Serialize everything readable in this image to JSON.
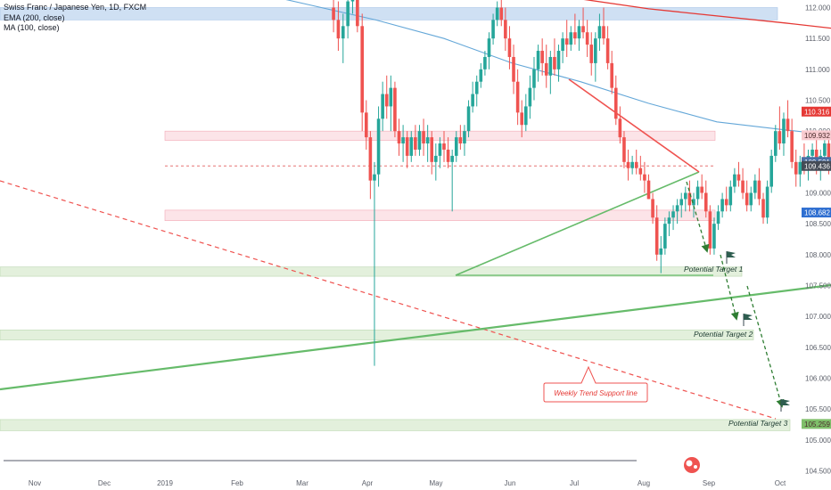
{
  "chart_data": {
    "type": "candlestick",
    "title": "Swiss Franc / Japanese Yen, 1D, FXCM",
    "indicators": [
      "EMA (200, close)",
      "MA (100, close)"
    ],
    "ylim": [
      104.4,
      112.2
    ],
    "y_ticks": [
      "112.000",
      "111.500",
      "111.000",
      "110.500",
      "110.000",
      "109.500",
      "109.000",
      "108.500",
      "108.000",
      "107.500",
      "107.000",
      "106.500",
      "106.000",
      "105.500",
      "105.000",
      "104.500"
    ],
    "x_ticks": [
      "Nov",
      "Dec",
      "2019",
      "Feb",
      "Mar",
      "Apr",
      "May",
      "Jun",
      "Jul",
      "Aug",
      "Sep",
      "Oct"
    ],
    "price_labels": [
      {
        "value": 110.316,
        "text": "110.316",
        "color": "#e53935"
      },
      {
        "value": 109.932,
        "text": "109.932",
        "color": "#f8cbd0"
      },
      {
        "value": 109.501,
        "text": "109.501",
        "color": "#4a6fa5"
      },
      {
        "value": 109.436,
        "text": "109.436",
        "color": "#444b56"
      },
      {
        "value": 108.682,
        "text": "108.682",
        "color": "#2f6fd1"
      },
      {
        "value": 105.259,
        "text": "105.259",
        "color": "#7fbf6a"
      }
    ],
    "zones": [
      {
        "name": "resistance-zone",
        "y1": 111.8,
        "y2": 112.0,
        "color": "#cfe0f3"
      },
      {
        "name": "resistance-zone-2",
        "y1": 109.85,
        "y2": 110.0,
        "color": "#fce4e8"
      },
      {
        "name": "support-zone",
        "y1": 108.55,
        "y2": 108.72,
        "color": "#fce4e8"
      },
      {
        "name": "target-zone-1",
        "y1": 107.65,
        "y2": 107.8,
        "color": "#e3f0dc"
      },
      {
        "name": "target-zone-2",
        "y1": 106.62,
        "y2": 106.78,
        "color": "#e3f0dc"
      },
      {
        "name": "target-zone-3",
        "y1": 105.15,
        "y2": 105.33,
        "color": "#e3f0dc"
      }
    ],
    "annotations": {
      "target_1": "Potential Target 1",
      "target_2": "Potential Target 2",
      "target_3": "Potential Target 3",
      "callout": "Weekly Trend Support line"
    },
    "ema200": [
      [
        7,
        112.3
      ],
      [
        9,
        111.98
      ],
      [
        11,
        111.75
      ],
      [
        13,
        111.5
      ],
      [
        15,
        111.2
      ],
      [
        17,
        110.95
      ],
      [
        19,
        110.7
      ],
      [
        21,
        110.5
      ],
      [
        23,
        110.35
      ],
      [
        25,
        110.3
      ]
    ],
    "ma100": [
      [
        3,
        112.3
      ],
      [
        4,
        112.05
      ],
      [
        5,
        111.8
      ],
      [
        6,
        111.5
      ],
      [
        7,
        111.1
      ],
      [
        8,
        110.8
      ],
      [
        9,
        110.45
      ],
      [
        10,
        110.15
      ],
      [
        11,
        110.02
      ],
      [
        12,
        109.9
      ],
      [
        13,
        109.85
      ],
      [
        14,
        109.8
      ],
      [
        15,
        109.75
      ],
      [
        16,
        109.72
      ],
      [
        17,
        109.67
      ],
      [
        18,
        109.62
      ],
      [
        18.4,
        109.62
      ],
      [
        18.6,
        109.75
      ]
    ],
    "candles": [
      {
        "t": 4.38,
        "o": 112.0,
        "h": 112.2,
        "l": 111.6,
        "c": 111.8
      },
      {
        "t": 4.45,
        "o": 111.8,
        "h": 112.1,
        "l": 111.3,
        "c": 111.5
      },
      {
        "t": 4.52,
        "o": 111.5,
        "h": 111.9,
        "l": 111.1,
        "c": 111.7
      },
      {
        "t": 4.59,
        "o": 111.7,
        "h": 112.2,
        "l": 111.5,
        "c": 112.1
      },
      {
        "t": 4.66,
        "o": 112.1,
        "h": 112.3,
        "l": 111.9,
        "c": 112.2
      },
      {
        "t": 4.73,
        "o": 112.2,
        "h": 112.3,
        "l": 111.6,
        "c": 111.7
      },
      {
        "t": 4.8,
        "o": 111.7,
        "h": 111.9,
        "l": 110.0,
        "c": 110.3
      },
      {
        "t": 4.86,
        "o": 110.3,
        "h": 110.5,
        "l": 109.7,
        "c": 109.9
      },
      {
        "t": 4.92,
        "o": 109.9,
        "h": 110.0,
        "l": 108.9,
        "c": 109.2
      },
      {
        "t": 4.98,
        "o": 109.2,
        "h": 109.5,
        "l": 106.2,
        "c": 109.3
      },
      {
        "t": 5.04,
        "o": 109.3,
        "h": 110.4,
        "l": 109.1,
        "c": 110.2
      },
      {
        "t": 5.1,
        "o": 110.2,
        "h": 110.8,
        "l": 110.0,
        "c": 110.6
      },
      {
        "t": 5.16,
        "o": 110.6,
        "h": 110.9,
        "l": 110.2,
        "c": 110.4
      },
      {
        "t": 5.22,
        "o": 110.4,
        "h": 110.9,
        "l": 110.0,
        "c": 110.7
      },
      {
        "t": 5.28,
        "o": 110.7,
        "h": 110.8,
        "l": 109.9,
        "c": 110.0
      },
      {
        "t": 5.34,
        "o": 110.0,
        "h": 110.2,
        "l": 109.6,
        "c": 109.8
      },
      {
        "t": 5.4,
        "o": 109.8,
        "h": 110.1,
        "l": 109.5,
        "c": 109.9
      },
      {
        "t": 5.46,
        "o": 109.9,
        "h": 110.0,
        "l": 109.4,
        "c": 109.6
      },
      {
        "t": 5.52,
        "o": 109.6,
        "h": 110.0,
        "l": 109.5,
        "c": 109.9
      },
      {
        "t": 5.58,
        "o": 109.9,
        "h": 110.1,
        "l": 109.6,
        "c": 109.7
      },
      {
        "t": 5.64,
        "o": 109.7,
        "h": 110.1,
        "l": 109.6,
        "c": 110.0
      },
      {
        "t": 5.7,
        "o": 110.0,
        "h": 110.2,
        "l": 109.6,
        "c": 109.8
      },
      {
        "t": 5.76,
        "o": 109.8,
        "h": 110.1,
        "l": 109.5,
        "c": 109.9
      },
      {
        "t": 5.82,
        "o": 109.9,
        "h": 110.0,
        "l": 109.3,
        "c": 109.5
      },
      {
        "t": 5.88,
        "o": 109.5,
        "h": 109.8,
        "l": 109.2,
        "c": 109.6
      },
      {
        "t": 5.94,
        "o": 109.6,
        "h": 109.9,
        "l": 109.4,
        "c": 109.8
      },
      {
        "t": 6.0,
        "o": 109.8,
        "h": 110.0,
        "l": 109.5,
        "c": 109.7
      },
      {
        "t": 6.06,
        "o": 109.7,
        "h": 109.9,
        "l": 109.4,
        "c": 109.5
      },
      {
        "t": 6.12,
        "o": 109.5,
        "h": 109.7,
        "l": 108.7,
        "c": 109.6
      },
      {
        "t": 6.18,
        "o": 109.6,
        "h": 110.0,
        "l": 109.5,
        "c": 109.9
      },
      {
        "t": 6.24,
        "o": 109.9,
        "h": 110.1,
        "l": 109.7,
        "c": 109.8
      },
      {
        "t": 6.3,
        "o": 109.8,
        "h": 110.1,
        "l": 109.6,
        "c": 110.0
      },
      {
        "t": 6.36,
        "o": 110.0,
        "h": 110.5,
        "l": 109.9,
        "c": 110.4
      },
      {
        "t": 6.42,
        "o": 110.4,
        "h": 110.8,
        "l": 110.3,
        "c": 110.6
      },
      {
        "t": 6.48,
        "o": 110.6,
        "h": 110.9,
        "l": 110.4,
        "c": 110.8
      },
      {
        "t": 6.54,
        "o": 110.8,
        "h": 111.1,
        "l": 110.7,
        "c": 111.0
      },
      {
        "t": 6.6,
        "o": 111.0,
        "h": 111.3,
        "l": 110.9,
        "c": 111.2
      },
      {
        "t": 6.66,
        "o": 111.2,
        "h": 111.6,
        "l": 111.0,
        "c": 111.5
      },
      {
        "t": 6.72,
        "o": 111.5,
        "h": 111.9,
        "l": 111.4,
        "c": 111.8
      },
      {
        "t": 6.78,
        "o": 111.8,
        "h": 112.1,
        "l": 111.7,
        "c": 112.0
      },
      {
        "t": 6.84,
        "o": 112.0,
        "h": 112.2,
        "l": 111.7,
        "c": 111.8
      },
      {
        "t": 6.9,
        "o": 111.8,
        "h": 112.0,
        "l": 111.3,
        "c": 111.5
      },
      {
        "t": 6.96,
        "o": 111.5,
        "h": 111.7,
        "l": 111.0,
        "c": 111.2
      },
      {
        "t": 7.02,
        "o": 111.2,
        "h": 111.4,
        "l": 110.6,
        "c": 110.8
      },
      {
        "t": 7.08,
        "o": 110.8,
        "h": 111.0,
        "l": 110.1,
        "c": 110.3
      },
      {
        "t": 7.14,
        "o": 110.3,
        "h": 110.5,
        "l": 109.9,
        "c": 110.1
      },
      {
        "t": 7.2,
        "o": 110.1,
        "h": 110.6,
        "l": 110.0,
        "c": 110.4
      },
      {
        "t": 7.26,
        "o": 110.4,
        "h": 110.9,
        "l": 110.2,
        "c": 110.7
      },
      {
        "t": 7.32,
        "o": 110.7,
        "h": 111.2,
        "l": 110.5,
        "c": 111.0
      },
      {
        "t": 7.38,
        "o": 111.0,
        "h": 111.4,
        "l": 110.8,
        "c": 111.3
      },
      {
        "t": 7.44,
        "o": 111.3,
        "h": 111.5,
        "l": 110.9,
        "c": 111.1
      },
      {
        "t": 7.5,
        "o": 111.1,
        "h": 111.4,
        "l": 110.7,
        "c": 110.9
      },
      {
        "t": 7.56,
        "o": 110.9,
        "h": 111.3,
        "l": 110.6,
        "c": 111.2
      },
      {
        "t": 7.62,
        "o": 111.2,
        "h": 111.5,
        "l": 110.9,
        "c": 111.0
      },
      {
        "t": 7.68,
        "o": 111.0,
        "h": 111.4,
        "l": 110.8,
        "c": 111.3
      },
      {
        "t": 7.74,
        "o": 111.3,
        "h": 111.6,
        "l": 111.1,
        "c": 111.5
      },
      {
        "t": 7.8,
        "o": 111.5,
        "h": 111.8,
        "l": 111.2,
        "c": 111.4
      },
      {
        "t": 7.86,
        "o": 111.4,
        "h": 111.7,
        "l": 111.3,
        "c": 111.6
      },
      {
        "t": 7.92,
        "o": 111.6,
        "h": 111.9,
        "l": 111.4,
        "c": 111.5
      },
      {
        "t": 7.98,
        "o": 111.5,
        "h": 111.8,
        "l": 111.3,
        "c": 111.7
      },
      {
        "t": 8.04,
        "o": 111.7,
        "h": 112.0,
        "l": 111.5,
        "c": 111.6
      },
      {
        "t": 8.1,
        "o": 111.6,
        "h": 111.8,
        "l": 111.2,
        "c": 111.4
      },
      {
        "t": 8.16,
        "o": 111.4,
        "h": 111.6,
        "l": 110.9,
        "c": 111.1
      },
      {
        "t": 8.22,
        "o": 111.1,
        "h": 111.6,
        "l": 110.8,
        "c": 111.5
      },
      {
        "t": 8.28,
        "o": 111.5,
        "h": 111.9,
        "l": 111.3,
        "c": 111.7
      },
      {
        "t": 8.34,
        "o": 111.7,
        "h": 112.0,
        "l": 111.4,
        "c": 111.5
      },
      {
        "t": 8.4,
        "o": 111.5,
        "h": 111.7,
        "l": 111.0,
        "c": 111.1
      },
      {
        "t": 8.46,
        "o": 111.1,
        "h": 111.3,
        "l": 110.6,
        "c": 110.7
      },
      {
        "t": 8.52,
        "o": 110.7,
        "h": 110.9,
        "l": 110.1,
        "c": 110.2
      },
      {
        "t": 8.58,
        "o": 110.2,
        "h": 110.4,
        "l": 109.8,
        "c": 109.9
      },
      {
        "t": 8.64,
        "o": 109.9,
        "h": 110.0,
        "l": 109.4,
        "c": 109.5
      },
      {
        "t": 8.7,
        "o": 109.5,
        "h": 109.7,
        "l": 109.2,
        "c": 109.4
      },
      {
        "t": 8.76,
        "o": 109.4,
        "h": 109.6,
        "l": 109.3,
        "c": 109.5
      },
      {
        "t": 8.82,
        "o": 109.5,
        "h": 109.7,
        "l": 109.3,
        "c": 109.4
      },
      {
        "t": 8.88,
        "o": 109.4,
        "h": 109.6,
        "l": 109.2,
        "c": 109.3
      },
      {
        "t": 8.94,
        "o": 109.3,
        "h": 109.5,
        "l": 109.0,
        "c": 109.2
      },
      {
        "t": 9.0,
        "o": 109.2,
        "h": 109.3,
        "l": 108.9,
        "c": 108.9
      },
      {
        "t": 9.06,
        "o": 108.9,
        "h": 109.0,
        "l": 108.5,
        "c": 108.6
      },
      {
        "t": 9.12,
        "o": 108.6,
        "h": 108.8,
        "l": 107.9,
        "c": 108.0
      },
      {
        "t": 9.18,
        "o": 108.0,
        "h": 108.3,
        "l": 107.7,
        "c": 108.1
      },
      {
        "t": 9.24,
        "o": 108.1,
        "h": 108.6,
        "l": 108.0,
        "c": 108.5
      },
      {
        "t": 9.3,
        "o": 108.5,
        "h": 108.7,
        "l": 108.3,
        "c": 108.6
      },
      {
        "t": 9.36,
        "o": 108.6,
        "h": 108.8,
        "l": 108.4,
        "c": 108.7
      },
      {
        "t": 9.42,
        "o": 108.7,
        "h": 108.9,
        "l": 108.5,
        "c": 108.8
      },
      {
        "t": 9.48,
        "o": 108.8,
        "h": 109.0,
        "l": 108.6,
        "c": 108.9
      },
      {
        "t": 9.54,
        "o": 108.9,
        "h": 109.1,
        "l": 108.7,
        "c": 109.0
      },
      {
        "t": 9.6,
        "o": 109.0,
        "h": 109.2,
        "l": 108.7,
        "c": 108.8
      },
      {
        "t": 9.66,
        "o": 108.8,
        "h": 109.0,
        "l": 108.6,
        "c": 108.9
      },
      {
        "t": 9.72,
        "o": 108.9,
        "h": 109.2,
        "l": 108.8,
        "c": 109.1
      },
      {
        "t": 9.78,
        "o": 109.1,
        "h": 109.3,
        "l": 108.9,
        "c": 109.0
      },
      {
        "t": 9.84,
        "o": 109.0,
        "h": 109.2,
        "l": 108.6,
        "c": 108.7
      },
      {
        "t": 9.9,
        "o": 108.7,
        "h": 108.8,
        "l": 108.0,
        "c": 108.1
      },
      {
        "t": 9.96,
        "o": 108.1,
        "h": 108.6,
        "l": 108.0,
        "c": 108.5
      },
      {
        "t": 10.02,
        "o": 108.5,
        "h": 108.8,
        "l": 108.4,
        "c": 108.7
      },
      {
        "t": 10.08,
        "o": 108.7,
        "h": 109.0,
        "l": 108.6,
        "c": 108.9
      },
      {
        "t": 10.14,
        "o": 108.9,
        "h": 109.1,
        "l": 108.7,
        "c": 108.8
      },
      {
        "t": 10.2,
        "o": 108.8,
        "h": 109.2,
        "l": 108.7,
        "c": 109.1
      },
      {
        "t": 10.26,
        "o": 109.1,
        "h": 109.4,
        "l": 109.0,
        "c": 109.3
      },
      {
        "t": 10.32,
        "o": 109.3,
        "h": 109.5,
        "l": 109.1,
        "c": 109.2
      },
      {
        "t": 10.38,
        "o": 109.2,
        "h": 109.4,
        "l": 108.9,
        "c": 109.0
      },
      {
        "t": 10.44,
        "o": 109.0,
        "h": 109.2,
        "l": 108.7,
        "c": 108.8
      },
      {
        "t": 10.5,
        "o": 108.8,
        "h": 109.1,
        "l": 108.7,
        "c": 109.0
      },
      {
        "t": 10.56,
        "o": 109.0,
        "h": 109.3,
        "l": 108.9,
        "c": 109.2
      },
      {
        "t": 10.62,
        "o": 109.2,
        "h": 109.4,
        "l": 108.8,
        "c": 108.9
      },
      {
        "t": 10.68,
        "o": 108.9,
        "h": 109.0,
        "l": 108.5,
        "c": 108.6
      },
      {
        "t": 10.74,
        "o": 108.6,
        "h": 109.2,
        "l": 108.5,
        "c": 109.1
      },
      {
        "t": 10.8,
        "o": 109.1,
        "h": 109.7,
        "l": 109.0,
        "c": 109.6
      },
      {
        "t": 10.86,
        "o": 109.6,
        "h": 110.1,
        "l": 109.5,
        "c": 110.0
      },
      {
        "t": 10.92,
        "o": 110.0,
        "h": 110.4,
        "l": 109.7,
        "c": 109.8
      },
      {
        "t": 10.98,
        "o": 109.8,
        "h": 110.3,
        "l": 109.6,
        "c": 110.2
      },
      {
        "t": 11.04,
        "o": 110.2,
        "h": 110.5,
        "l": 109.9,
        "c": 110.0
      },
      {
        "t": 11.1,
        "o": 110.0,
        "h": 110.2,
        "l": 109.4,
        "c": 109.5
      },
      {
        "t": 11.16,
        "o": 109.5,
        "h": 109.7,
        "l": 109.1,
        "c": 109.3
      },
      {
        "t": 11.22,
        "o": 109.3,
        "h": 109.6,
        "l": 109.1,
        "c": 109.5
      },
      {
        "t": 11.28,
        "o": 109.5,
        "h": 109.8,
        "l": 109.3,
        "c": 109.4
      },
      {
        "t": 11.34,
        "o": 109.4,
        "h": 109.7,
        "l": 109.2,
        "c": 109.6
      },
      {
        "t": 11.4,
        "o": 109.6,
        "h": 109.8,
        "l": 109.4,
        "c": 109.7
      },
      {
        "t": 11.46,
        "o": 109.7,
        "h": 110.0,
        "l": 109.3,
        "c": 109.4
      },
      {
        "t": 11.52,
        "o": 109.4,
        "h": 109.7,
        "l": 109.2,
        "c": 109.6
      },
      {
        "t": 11.58,
        "o": 109.6,
        "h": 109.9,
        "l": 109.5,
        "c": 109.8
      },
      {
        "t": 11.64,
        "o": 109.8,
        "h": 110.0,
        "l": 109.3,
        "c": 109.4
      },
      {
        "t": 11.7,
        "o": 109.4,
        "h": 109.6,
        "l": 109.1,
        "c": 109.2
      },
      {
        "t": 11.76,
        "o": 109.2,
        "h": 109.8,
        "l": 109.1,
        "c": 109.7
      },
      {
        "t": 11.82,
        "o": 109.7,
        "h": 109.9,
        "l": 109.3,
        "c": 109.4
      },
      {
        "t": 11.88,
        "o": 109.4,
        "h": 109.6,
        "l": 109.0,
        "c": 109.1
      },
      {
        "t": 11.94,
        "o": 109.1,
        "h": 109.2,
        "l": 108.4,
        "c": 108.5
      },
      {
        "t": 12.0,
        "o": 108.5,
        "h": 108.9,
        "l": 108.0,
        "c": 108.8
      },
      {
        "t": 12.06,
        "o": 108.8,
        "h": 109.1,
        "l": 108.3,
        "c": 108.4
      },
      {
        "t": 12.12,
        "o": 108.4,
        "h": 109.0,
        "l": 108.2,
        "c": 108.9
      },
      {
        "t": 12.18,
        "o": 108.9,
        "h": 109.2,
        "l": 108.6,
        "c": 108.7
      },
      {
        "t": 12.24,
        "o": 108.7,
        "h": 109.1,
        "l": 108.2,
        "c": 108.3
      },
      {
        "t": 12.3,
        "o": 108.3,
        "h": 109.0,
        "l": 108.2,
        "c": 108.9
      },
      {
        "t": 12.36,
        "o": 108.9,
        "h": 109.6,
        "l": 108.8,
        "c": 109.5
      },
      {
        "t": 12.42,
        "o": 109.5,
        "h": 109.6,
        "l": 108.8,
        "c": 109.0
      },
      {
        "t": 12.48,
        "o": 109.0,
        "h": 109.1,
        "l": 108.5,
        "c": 108.6
      },
      {
        "t": 12.54,
        "o": 108.6,
        "h": 108.7,
        "l": 108.3,
        "c": 108.5
      }
    ]
  }
}
